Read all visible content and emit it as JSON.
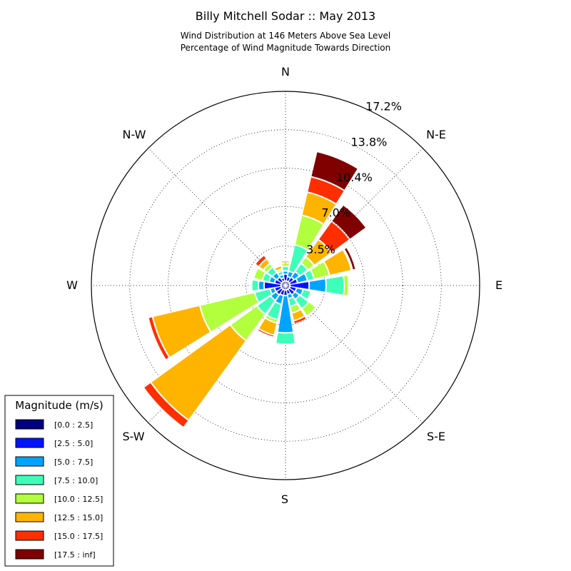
{
  "chart_data": {
    "type": "windrose",
    "title": "Billy Mitchell Sodar :: May 2013",
    "subtitle_lines": [
      "Wind Distribution at 146 Meters Above Sea Level",
      "Percentage of Wind Magnitude Towards Direction"
    ],
    "direction_labels": [
      "N",
      "N-E",
      "E",
      "S-E",
      "S",
      "S-W",
      "W",
      "N-W"
    ],
    "ring_values": [
      3.5,
      7.0,
      10.4,
      13.8,
      17.2
    ],
    "ring_labels": [
      "3.5%",
      "7.0%",
      "10.4%",
      "13.8%",
      "17.2%"
    ],
    "rmax": 17.2,
    "grid": true,
    "legend": {
      "title": "Magnitude (m/s)",
      "placement": "bottom-left",
      "entries": [
        {
          "label": "[0.0 : 2.5]",
          "color": "#000080"
        },
        {
          "label": "[2.5 : 5.0]",
          "color": "#0014ff"
        },
        {
          "label": "[5.0 : 7.5]",
          "color": "#00a4ff"
        },
        {
          "label": "[7.5 : 10.0]",
          "color": "#3dffba"
        },
        {
          "label": "[10.0 : 12.5]",
          "color": "#b2ff3d"
        },
        {
          "label": "[12.5 : 15.0]",
          "color": "#ffb400"
        },
        {
          "label": "[15.0 : 17.5]",
          "color": "#ff2e00"
        },
        {
          "label": "[17.5 : inf]",
          "color": "#800000"
        }
      ]
    },
    "sector_directions_deg": [
      0,
      22.5,
      45,
      67.5,
      90,
      112.5,
      135,
      157.5,
      180,
      202.5,
      225,
      247.5,
      270,
      292.5,
      315,
      337.5
    ],
    "bins": [
      {
        "name": "[0.0 : 2.5]",
        "values": [
          0.4,
          0.4,
          0.4,
          0.4,
          0.4,
          0.4,
          0.4,
          0.4,
          0.4,
          0.4,
          0.4,
          0.4,
          0.4,
          0.4,
          0.4,
          0.4
        ]
      },
      {
        "name": "[2.5 : 5.0]",
        "values": [
          0.6,
          0.4,
          0.5,
          0.7,
          1.7,
          0.6,
          0.6,
          0.4,
          0.5,
          0.5,
          0.6,
          0.6,
          1.5,
          0.6,
          0.5,
          0.3
        ]
      },
      {
        "name": "[5.0 : 7.5]",
        "values": [
          0.3,
          0.5,
          0.6,
          0.9,
          1.5,
          0.6,
          0.5,
          0.4,
          3.3,
          0.8,
          0.6,
          0.4,
          0.5,
          0.5,
          0.5,
          0.3
        ]
      },
      {
        "name": "[7.5 : 10.0]",
        "values": [
          0.4,
          2.4,
          0.9,
          0.6,
          1.6,
          0.7,
          1.0,
          0.7,
          1.0,
          1.4,
          1.5,
          1.4,
          0.6,
          0.6,
          0.6,
          0.3
        ]
      },
      {
        "name": "[10.0 : 12.5]",
        "values": [
          0.3,
          2.7,
          0.7,
          1.4,
          0.4,
          0.1,
          0.8,
          0.6,
          0.0,
          0.3,
          2.9,
          5.0,
          0.1,
          0.8,
          0.4,
          0.2
        ]
      },
      {
        "name": "[12.5 : 15.0]",
        "values": [
          0.2,
          2.1,
          1.9,
          2.0,
          0.0,
          0.0,
          0.0,
          0.7,
          0.0,
          1.1,
          8.7,
          4.3,
          0.1,
          0.0,
          0.5,
          0.3
        ]
      },
      {
        "name": "[15.0 : 17.5]",
        "values": [
          0.1,
          1.4,
          2.0,
          0.1,
          0.0,
          0.0,
          0.0,
          0.3,
          0.0,
          0.2,
          0.8,
          0.4,
          0.0,
          0.0,
          0.4,
          0.0
        ]
      },
      {
        "name": "[17.5 : inf]",
        "values": [
          0.0,
          2.3,
          1.8,
          0.3,
          0.0,
          0.0,
          0.0,
          0.0,
          0.0,
          0.0,
          0.0,
          0.0,
          0.0,
          0.0,
          0.0,
          0.0
        ]
      }
    ]
  }
}
